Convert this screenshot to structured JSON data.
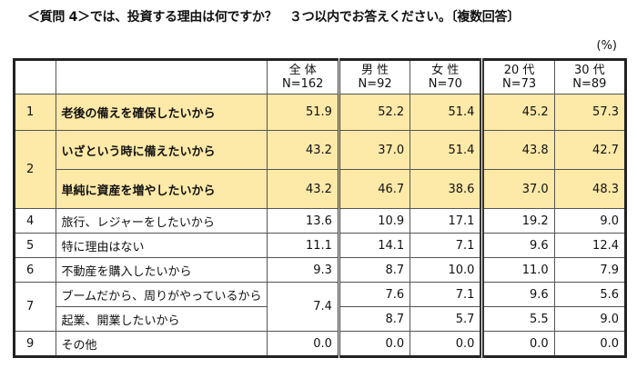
{
  "title": "＜質問 4＞では、投資する理由は何ですか？　３つ以内でお答えください。〔複数回答〕",
  "unit": "(%)",
  "columns": [
    {
      "name": "全 体",
      "n": "N=162"
    },
    {
      "name": "男 性",
      "n": "N=92"
    },
    {
      "name": "女 性",
      "n": "N=70"
    },
    {
      "name": "20 代",
      "n": "N=73"
    },
    {
      "name": "30 代",
      "n": "N=89"
    }
  ],
  "highlight_color": "#fde9a8",
  "rows": [
    {
      "rank": "1",
      "label": "老後の備えを確保したいから",
      "values": [
        "51.9",
        "52.2",
        "51.4",
        "45.2",
        "57.3"
      ]
    },
    {
      "rank": "2",
      "label": "いざという時に備えたいから",
      "values": [
        "43.2",
        "37.0",
        "51.4",
        "43.8",
        "42.7"
      ]
    },
    {
      "rank": "2",
      "label": "単純に資産を増やしたいから",
      "values": [
        "43.2",
        "46.7",
        "38.6",
        "37.0",
        "48.3"
      ]
    },
    {
      "rank": "4",
      "label": "旅行、レジャーをしたいから",
      "values": [
        "13.6",
        "10.9",
        "17.1",
        "19.2",
        "9.0"
      ]
    },
    {
      "rank": "5",
      "label": "特に理由はない",
      "values": [
        "11.1",
        "14.1",
        "7.1",
        "9.6",
        "12.4"
      ]
    },
    {
      "rank": "6",
      "label": "不動産を購入したいから",
      "values": [
        "9.3",
        "8.7",
        "10.0",
        "11.0",
        "7.9"
      ]
    },
    {
      "rank": "7",
      "label": "ブームだから、周りがやっているから",
      "values": [
        "7.4",
        "7.6",
        "7.1",
        "9.6",
        "5.6"
      ]
    },
    {
      "rank": "7",
      "label": "起業、開業したいから",
      "values": [
        "7.4",
        "8.7",
        "5.7",
        "5.5",
        "9.0"
      ]
    },
    {
      "rank": "9",
      "label": "その他",
      "values": [
        "0.0",
        "0.0",
        "0.0",
        "0.0",
        "0.0"
      ]
    }
  ]
}
